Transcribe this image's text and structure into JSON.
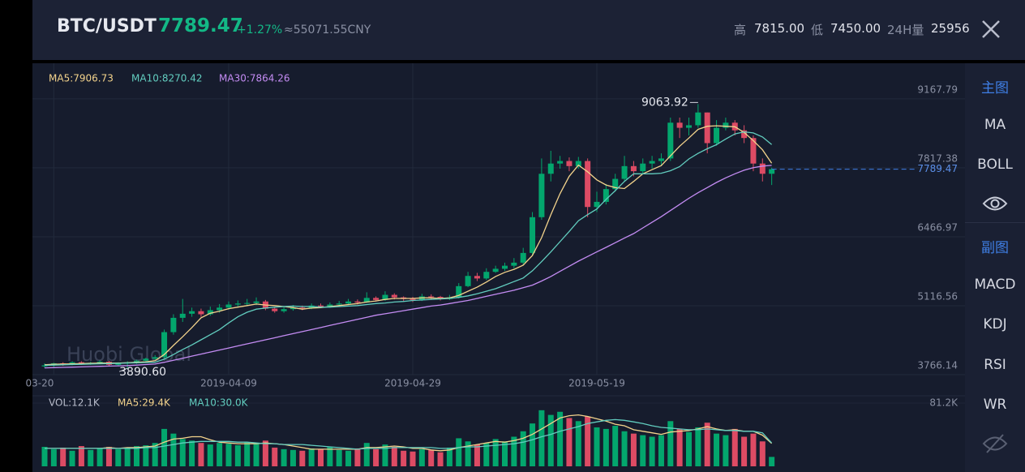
{
  "header": {
    "pair": "BTC/USDT",
    "price": "7789.47",
    "change": "+1.27%",
    "cny": "≈55071.55CNY",
    "high_label": "高",
    "high": "7815.00",
    "low_label": "低",
    "low": "7450.00",
    "vol_label": "24H量",
    "vol": "25956"
  },
  "sidebar": {
    "main_title": "主图",
    "main_items": [
      "MA",
      "BOLL"
    ],
    "sub_title": "副图",
    "sub_items": [
      "MACD",
      "KDJ",
      "RSI",
      "WR"
    ]
  },
  "chart_data": {
    "type": "candlestick",
    "watermark": "Huobi Global",
    "categories": [
      null,
      "03-20",
      null,
      null,
      null,
      null,
      null,
      null,
      null,
      null,
      null,
      null,
      null,
      null,
      null,
      null,
      null,
      null,
      null,
      null,
      "2019-04-09",
      null,
      null,
      null,
      null,
      null,
      null,
      null,
      null,
      null,
      null,
      null,
      null,
      null,
      null,
      null,
      null,
      null,
      null,
      null,
      "2019-04-29",
      null,
      null,
      null,
      null,
      null,
      null,
      null,
      null,
      null,
      null,
      null,
      null,
      null,
      null,
      null,
      null,
      null,
      null,
      null,
      "2019-05-19",
      null,
      null,
      null,
      null,
      null,
      null,
      null,
      null,
      null,
      null,
      null,
      null,
      null,
      null,
      null,
      null,
      null,
      null,
      null
    ],
    "open": [
      3930,
      3950,
      3990,
      3970,
      4010,
      3980,
      4000,
      4020,
      3960,
      3990,
      4010,
      4040,
      4080,
      4110,
      4600,
      4880,
      4960,
      5010,
      4950,
      5030,
      5080,
      5140,
      5160,
      5170,
      5200,
      5060,
      5010,
      5050,
      5080,
      5070,
      5120,
      5100,
      5140,
      5160,
      5200,
      5180,
      5270,
      5230,
      5330,
      5280,
      5250,
      5230,
      5300,
      5290,
      5250,
      5280,
      5500,
      5700,
      5650,
      5780,
      5840,
      5900,
      5960,
      6150,
      6850,
      7700,
      7900,
      7950,
      7850,
      7950,
      7050,
      7150,
      7400,
      7600,
      7850,
      7750,
      7900,
      7950,
      8000,
      8700,
      8600,
      8650,
      8900,
      8300,
      8600,
      8700,
      8550,
      8400,
      7900,
      7700
    ],
    "high": [
      3990,
      4000,
      4010,
      4030,
      4030,
      4020,
      4050,
      4040,
      4010,
      4030,
      4060,
      4100,
      4150,
      4650,
      4950,
      5250,
      5080,
      5060,
      5100,
      5150,
      5200,
      5220,
      5250,
      5280,
      5230,
      5090,
      5100,
      5130,
      5120,
      5160,
      5160,
      5180,
      5210,
      5250,
      5240,
      5380,
      5300,
      5400,
      5360,
      5300,
      5290,
      5350,
      5340,
      5310,
      5330,
      5560,
      5780,
      5760,
      5850,
      5900,
      5960,
      6050,
      6250,
      6950,
      8000,
      8150,
      8050,
      8020,
      8030,
      8000,
      7350,
      7500,
      7700,
      8050,
      7950,
      8000,
      8050,
      8100,
      8800,
      8800,
      8800,
      9063.92,
      8900,
      8750,
      8800,
      8750,
      8650,
      8450,
      8000,
      7820
    ],
    "low": [
      3900,
      3920,
      3940,
      3950,
      3960,
      3960,
      3980,
      3930,
      3940,
      3890.6,
      3980,
      4020,
      4060,
      4080,
      4550,
      4800,
      4900,
      4900,
      4920,
      4980,
      5040,
      5100,
      5110,
      5130,
      5030,
      4980,
      4980,
      5020,
      5030,
      5050,
      5070,
      5080,
      5110,
      5130,
      5140,
      5170,
      5200,
      5210,
      5240,
      5200,
      5190,
      5210,
      5250,
      5220,
      5230,
      5260,
      5480,
      5600,
      5620,
      5760,
      5800,
      5850,
      5920,
      6100,
      6800,
      7550,
      7800,
      7750,
      7800,
      6850,
      6950,
      7100,
      7350,
      7550,
      7650,
      7700,
      7800,
      7850,
      7950,
      8400,
      8450,
      8600,
      8100,
      8250,
      8550,
      8450,
      8300,
      7750,
      7550,
      7480
    ],
    "close": [
      3950,
      3990,
      3970,
      4010,
      3980,
      4000,
      4020,
      3960,
      3990,
      4010,
      4040,
      4080,
      4110,
      4600,
      4880,
      4960,
      5010,
      4950,
      5030,
      5080,
      5140,
      5160,
      5170,
      5200,
      5060,
      5010,
      5050,
      5080,
      5070,
      5120,
      5100,
      5140,
      5160,
      5200,
      5180,
      5270,
      5230,
      5330,
      5280,
      5250,
      5230,
      5300,
      5290,
      5250,
      5280,
      5500,
      5700,
      5650,
      5780,
      5840,
      5900,
      5960,
      6150,
      6850,
      7700,
      7900,
      7950,
      7850,
      7950,
      7050,
      7150,
      7400,
      7600,
      7850,
      7750,
      7900,
      7950,
      8000,
      8700,
      8600,
      8650,
      8900,
      8300,
      8600,
      8700,
      8550,
      8400,
      7900,
      7700,
      7789.47
    ],
    "up_color": "#03a66d",
    "down_color": "#dd4b64",
    "annotations": [
      {
        "label": "9063.92"
      },
      {
        "label": "3890.60"
      }
    ],
    "series": [
      {
        "name": "MA5:7906.73",
        "color": "#f3d38c",
        "values": [
          3960,
          3970,
          3975,
          3980,
          3985,
          3990,
          3995,
          3995,
          3995,
          4000,
          4010,
          4020,
          4040,
          4160,
          4340,
          4510,
          4690,
          4880,
          4970,
          5010,
          5060,
          5090,
          5120,
          5150,
          5130,
          5120,
          5100,
          5080,
          5050,
          5070,
          5080,
          5100,
          5120,
          5140,
          5160,
          5190,
          5210,
          5240,
          5260,
          5260,
          5260,
          5270,
          5270,
          5260,
          5270,
          5320,
          5400,
          5480,
          5580,
          5690,
          5770,
          5830,
          5910,
          6100,
          6450,
          6900,
          7310,
          7650,
          7870,
          7740,
          7580,
          7480,
          7430,
          7410,
          7550,
          7700,
          7780,
          7860,
          8050,
          8240,
          8400,
          8570,
          8630,
          8640,
          8630,
          8620,
          8510,
          8350,
          8170,
          7906.73
        ]
      },
      {
        "name": "MA10:8270.42",
        "color": "#62cdbf",
        "values": [
          3950,
          3955,
          3960,
          3965,
          3970,
          3975,
          3980,
          3985,
          3990,
          3995,
          4000,
          4005,
          4010,
          4070,
          4160,
          4260,
          4350,
          4450,
          4550,
          4650,
          4780,
          4900,
          4990,
          5050,
          5070,
          5090,
          5100,
          5110,
          5100,
          5100,
          5090,
          5090,
          5100,
          5110,
          5120,
          5140,
          5160,
          5170,
          5190,
          5200,
          5220,
          5230,
          5240,
          5250,
          5260,
          5280,
          5310,
          5350,
          5400,
          5450,
          5520,
          5590,
          5660,
          5800,
          5980,
          6170,
          6370,
          6570,
          6780,
          6900,
          7010,
          7200,
          7370,
          7550,
          7700,
          7700,
          7700,
          7710,
          7760,
          7840,
          7990,
          8100,
          8190,
          8270,
          8380,
          8480,
          8520,
          8500,
          8420,
          8270.42
        ]
      },
      {
        "name": "MA30:7864.26",
        "color": "#c48cf3",
        "values": [
          3900,
          3905,
          3910,
          3915,
          3920,
          3925,
          3930,
          3935,
          3940,
          3945,
          3955,
          3965,
          3975,
          4010,
          4050,
          4090,
          4130,
          4170,
          4210,
          4250,
          4290,
          4330,
          4370,
          4410,
          4450,
          4490,
          4530,
          4570,
          4610,
          4650,
          4690,
          4730,
          4770,
          4810,
          4850,
          4890,
          4930,
          4960,
          4990,
          5020,
          5050,
          5080,
          5110,
          5130,
          5160,
          5190,
          5220,
          5260,
          5300,
          5340,
          5380,
          5420,
          5470,
          5520,
          5600,
          5690,
          5790,
          5890,
          5990,
          6080,
          6170,
          6260,
          6350,
          6440,
          6530,
          6640,
          6750,
          6860,
          6980,
          7100,
          7220,
          7330,
          7430,
          7530,
          7620,
          7700,
          7770,
          7820,
          7850,
          7864.26
        ]
      }
    ],
    "ylim": [
      3640,
      9800
    ],
    "yticks": [
      3766.14,
      5116.56,
      6466.97,
      7817.38,
      9167.79
    ],
    "volume": {
      "name": "VOL:12.1K",
      "values": [
        25000,
        22000,
        24000,
        20000,
        26000,
        21000,
        23000,
        25000,
        22000,
        24000,
        26000,
        27000,
        30000,
        48000,
        42000,
        35000,
        33000,
        30000,
        28000,
        30000,
        29000,
        27000,
        31000,
        29000,
        33000,
        24000,
        22000,
        21000,
        20000,
        23000,
        22000,
        25000,
        21000,
        20000,
        23000,
        30000,
        22000,
        28000,
        25000,
        20000,
        19000,
        22000,
        21000,
        18000,
        24000,
        36000,
        32000,
        28000,
        30000,
        35000,
        32000,
        38000,
        45000,
        55000,
        72000,
        66000,
        70000,
        62000,
        58000,
        64000,
        50000,
        48000,
        52000,
        45000,
        42000,
        40000,
        38000,
        40000,
        58000,
        48000,
        44000,
        50000,
        56000,
        42000,
        40000,
        48000,
        38000,
        42000,
        32000,
        12100
      ],
      "series": [
        {
          "name": "MA5:29.4K",
          "color": "#f3d38c",
          "values": [
            23000,
            23000,
            23000,
            23000,
            23000,
            23000,
            23000,
            24000,
            23000,
            24000,
            24000,
            25000,
            26000,
            31000,
            35000,
            36000,
            38000,
            38000,
            34000,
            31000,
            30000,
            29000,
            29000,
            29000,
            30000,
            29000,
            28000,
            26000,
            24000,
            22000,
            22000,
            22000,
            22000,
            22000,
            22000,
            24000,
            24000,
            25000,
            26000,
            25000,
            23000,
            23000,
            21000,
            20000,
            21000,
            24000,
            26000,
            28000,
            30000,
            32000,
            31000,
            33000,
            36000,
            41000,
            48000,
            55000,
            62000,
            65000,
            66000,
            64000,
            61000,
            58000,
            54000,
            52000,
            47000,
            45000,
            43000,
            41000,
            44000,
            45000,
            46000,
            48000,
            51000,
            48000,
            46000,
            47000,
            45000,
            45000,
            40000,
            29400
          ]
        },
        {
          "name": "MA10:30.0K",
          "color": "#62cdbf",
          "values": [
            23000,
            23000,
            23000,
            23000,
            23000,
            23000,
            23000,
            23000,
            23000,
            23000,
            23000,
            24000,
            24000,
            26000,
            28000,
            30000,
            31000,
            32000,
            32000,
            32000,
            32000,
            31000,
            31000,
            30000,
            29000,
            29000,
            28000,
            28000,
            28000,
            27000,
            26000,
            25000,
            24000,
            23000,
            22000,
            23000,
            23000,
            23000,
            24000,
            24000,
            24000,
            24000,
            24000,
            23000,
            23000,
            24000,
            25000,
            25000,
            26000,
            27000,
            28000,
            29000,
            31000,
            34000,
            38000,
            41000,
            45000,
            48000,
            51000,
            55000,
            57000,
            59000,
            60000,
            59000,
            57000,
            55000,
            52000,
            50000,
            49000,
            48000,
            47000,
            47000,
            48000,
            47000,
            46000,
            46000,
            45000,
            45000,
            43000,
            30000
          ]
        }
      ],
      "ylim": [
        0,
        81200
      ],
      "yticks": [
        {
          "value": 81200,
          "label": "81.2K"
        }
      ]
    }
  }
}
